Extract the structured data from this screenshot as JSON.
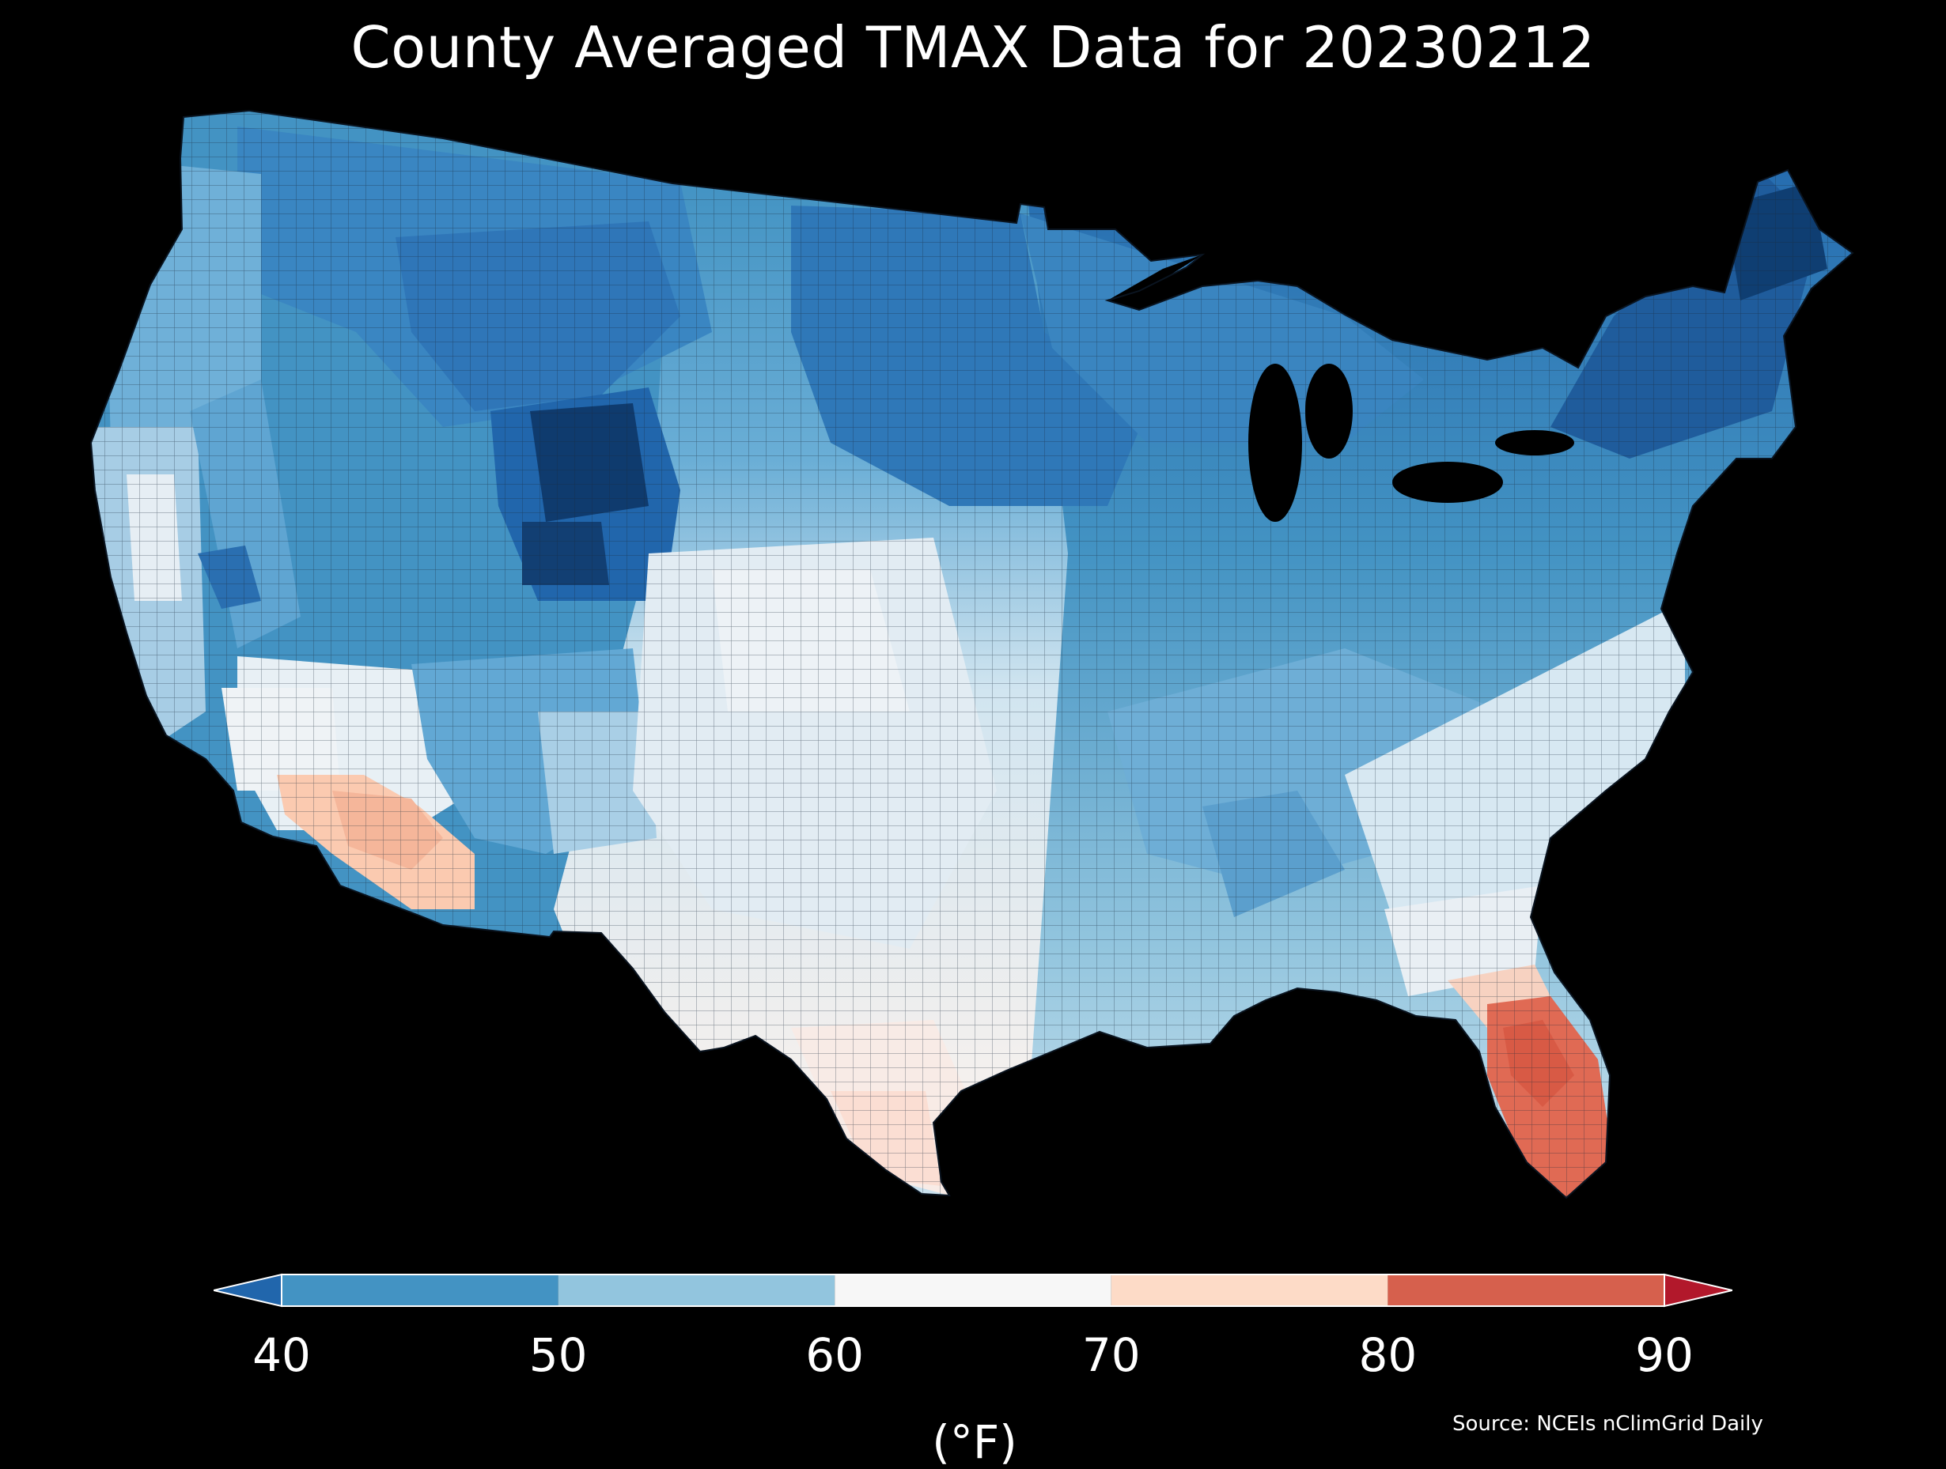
{
  "title": "County Averaged TMAX Data for 20230212",
  "colorbar": {
    "label": "(°F)",
    "ticks": [
      "40",
      "50",
      "60",
      "70",
      "80",
      "90"
    ],
    "min": 40,
    "max": 90,
    "extend": "both",
    "colors": {
      "under": "#2166ac",
      "bins": [
        "#4393c3",
        "#92c5de",
        "#f7f7f7",
        "#fddbc7",
        "#d6604d"
      ],
      "over": "#b2182b"
    }
  },
  "source": "Source: NCEIs nClimGrid Daily",
  "map_regions": [
    {
      "name": "pacific-northwest",
      "value_f": 48
    },
    {
      "name": "california-coast",
      "value_f": 58
    },
    {
      "name": "northern-rockies",
      "value_f": 42
    },
    {
      "name": "wyoming-colorado-core",
      "value_f": 34
    },
    {
      "name": "southwest-desert",
      "value_f": 60
    },
    {
      "name": "southern-arizona",
      "value_f": 72
    },
    {
      "name": "southern-plains",
      "value_f": 62
    },
    {
      "name": "south-texas",
      "value_f": 68
    },
    {
      "name": "upper-midwest",
      "value_f": 40
    },
    {
      "name": "ohio-valley",
      "value_f": 48
    },
    {
      "name": "northeast",
      "value_f": 38
    },
    {
      "name": "southeast",
      "value_f": 56
    },
    {
      "name": "florida",
      "value_f": 80
    }
  ]
}
